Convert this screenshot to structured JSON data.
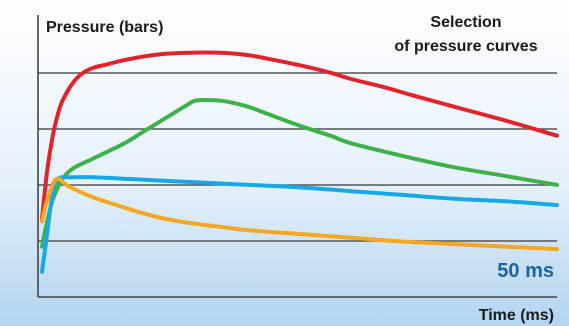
{
  "chart_data": {
    "type": "line",
    "title": "Selection of pressure curves",
    "title_lines": [
      "Selection",
      "of pressure curves"
    ],
    "ylabel": "Pressure (bars)",
    "xlabel": "Time (ms)",
    "annotation": "50 ms",
    "xlim": [
      0,
      50
    ],
    "ylim": [
      0,
      100
    ],
    "grid": true,
    "colors": {
      "background_top": "#ffffff",
      "background_bottom": "#b3d4ef",
      "grid": "#555555",
      "axis": "#444444",
      "annotation": "#1b64a8"
    },
    "series": [
      {
        "color": "#e3232b",
        "x": [
          0,
          0.5,
          1.0,
          1.5,
          2,
          3,
          4,
          5,
          6,
          8,
          10,
          12,
          15,
          18,
          20,
          22,
          25,
          28,
          30,
          33,
          36,
          40,
          45,
          50
        ],
        "y": [
          31,
          50,
          63,
          72,
          78,
          85,
          89,
          91,
          92,
          94,
          95.5,
          96.5,
          97,
          96.8,
          96,
          94.5,
          92,
          89,
          86.5,
          83.5,
          80,
          75.5,
          70,
          64
        ]
      },
      {
        "color": "#3db14a",
        "x": [
          0,
          0.5,
          1.0,
          1.5,
          2,
          3,
          5,
          8,
          10,
          12,
          14,
          15,
          17,
          18,
          20,
          22,
          25,
          28,
          30,
          35,
          40,
          45,
          50
        ],
        "y": [
          20,
          30,
          38,
          43,
          47,
          51,
          55,
          61,
          66,
          71,
          76,
          78,
          78,
          77.5,
          75.5,
          72.5,
          68,
          64,
          61,
          56,
          51.5,
          48,
          44.5
        ]
      },
      {
        "color": "#17a9e6",
        "x": [
          0,
          0.4,
          0.8,
          1.2,
          1.6,
          2,
          3,
          5,
          10,
          15,
          20,
          25,
          30,
          35,
          40,
          45,
          50
        ],
        "y": [
          10,
          22,
          35,
          44,
          47,
          47.5,
          47.5,
          47.5,
          46.5,
          45.5,
          44.5,
          43.5,
          42,
          40.5,
          39,
          38,
          36.5
        ]
      },
      {
        "color": "#f5a623",
        "x": [
          0,
          0.4,
          0.8,
          1.2,
          1.5,
          1.8,
          2.2,
          3,
          5,
          8,
          10,
          12,
          15,
          18,
          20,
          25,
          30,
          35,
          40,
          45,
          50
        ],
        "y": [
          30,
          37,
          42,
          46,
          47,
          46.5,
          45,
          43,
          39.5,
          35.5,
          33,
          31,
          29,
          27.5,
          26.5,
          25,
          23.5,
          22,
          21,
          20,
          19
        ]
      }
    ]
  }
}
